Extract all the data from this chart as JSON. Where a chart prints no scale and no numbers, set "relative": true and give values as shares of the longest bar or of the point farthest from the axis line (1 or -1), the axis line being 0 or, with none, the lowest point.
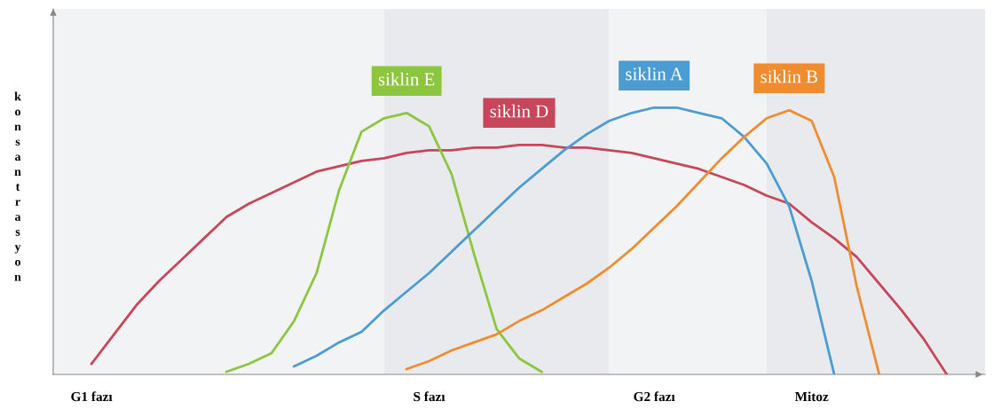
{
  "chart_data": {
    "type": "line",
    "relative": true,
    "ylabel": "konsantrasyon",
    "categories": [
      null,
      "G1 fazı",
      null,
      null,
      null,
      null,
      null,
      null,
      null,
      null,
      null,
      null,
      null,
      null,
      null,
      null,
      "S fazı",
      null,
      null,
      null,
      null,
      null,
      null,
      null,
      null,
      null,
      "G2 fazı",
      null,
      null,
      null,
      null,
      null,
      null,
      "Mitoz",
      null,
      null,
      null,
      null,
      null,
      null,
      null
    ],
    "grid": false,
    "legend": false,
    "marker": "none",
    "line_style": "solid",
    "series": [
      {
        "name": "siklin D",
        "color": "#c8465a",
        "values": [
          null,
          0.04,
          0.15,
          0.26,
          0.35,
          0.43,
          0.51,
          0.59,
          0.64,
          0.68,
          0.72,
          0.76,
          0.78,
          0.8,
          0.81,
          0.83,
          0.84,
          0.84,
          0.85,
          0.85,
          0.86,
          0.86,
          0.85,
          0.85,
          0.84,
          0.83,
          0.81,
          0.79,
          0.77,
          0.74,
          0.71,
          0.67,
          0.64,
          0.57,
          0.51,
          0.44,
          0.34,
          0.24,
          0.13,
          0,
          null
        ]
      },
      {
        "name": "siklin E",
        "color": "#8cc63f",
        "values": [
          null,
          null,
          null,
          null,
          null,
          null,
          null,
          0.01,
          0.04,
          0.08,
          0.2,
          0.38,
          0.69,
          0.91,
          0.96,
          0.98,
          0.93,
          0.75,
          0.45,
          0.17,
          0.06,
          0.01,
          null,
          null,
          null,
          null,
          null,
          null,
          null,
          null,
          null,
          null,
          null,
          null,
          null,
          null,
          null,
          null,
          null,
          null,
          null
        ]
      },
      {
        "name": "siklin A",
        "color": "#4b9cd3",
        "values": [
          null,
          null,
          null,
          null,
          null,
          null,
          null,
          null,
          null,
          null,
          0.03,
          0.07,
          0.12,
          0.16,
          0.24,
          0.31,
          0.38,
          0.46,
          0.54,
          0.62,
          0.7,
          0.77,
          0.84,
          0.9,
          0.95,
          0.98,
          1.0,
          1.0,
          0.98,
          0.96,
          0.89,
          0.79,
          0.63,
          0.35,
          0,
          null,
          null,
          null,
          null,
          null,
          null
        ]
      },
      {
        "name": "siklin B",
        "color": "#f08c30",
        "values": [
          null,
          null,
          null,
          null,
          null,
          null,
          null,
          null,
          null,
          null,
          null,
          null,
          null,
          null,
          null,
          0.02,
          0.05,
          0.09,
          0.12,
          0.15,
          0.2,
          0.24,
          0.29,
          0.34,
          0.4,
          0.47,
          0.55,
          0.63,
          0.72,
          0.81,
          0.89,
          0.96,
          0.99,
          0.95,
          0.74,
          0.33,
          0,
          null,
          null,
          null,
          null
        ]
      }
    ]
  }
}
